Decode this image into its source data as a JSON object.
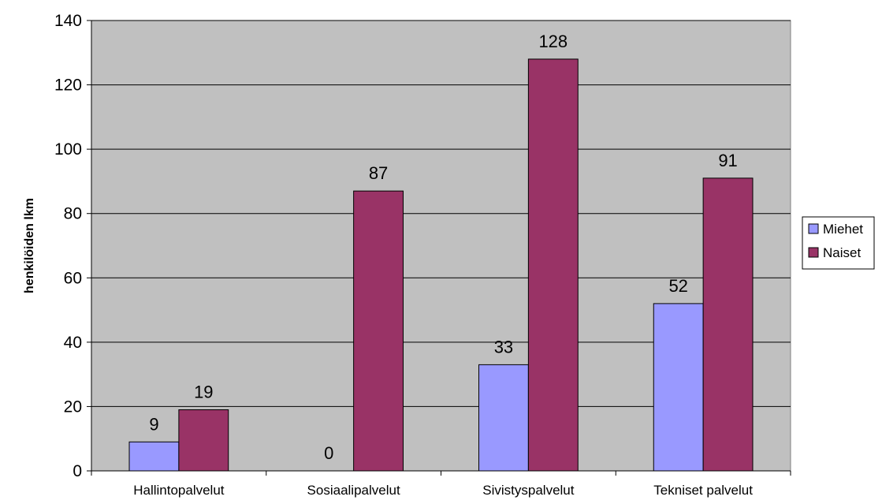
{
  "chart_data": {
    "type": "bar",
    "title": "",
    "xlabel": "",
    "ylabel": "henkilöiden lkm",
    "categories": [
      "Hallintopalvelut",
      "Sosiaalipalvelut",
      "Sivistyspalvelut",
      "Tekniset palvelut"
    ],
    "series": [
      {
        "name": "Miehet",
        "values": [
          9,
          0,
          33,
          52
        ],
        "color": "#9999ff"
      },
      {
        "name": "Naiset",
        "values": [
          19,
          87,
          128,
          91
        ],
        "color": "#993366"
      }
    ],
    "ylim": [
      0,
      140
    ],
    "yticks": [
      0,
      20,
      40,
      60,
      80,
      100,
      120,
      140
    ],
    "plot_background": "#c0c0c0",
    "grid": true,
    "legend_position": "right"
  }
}
